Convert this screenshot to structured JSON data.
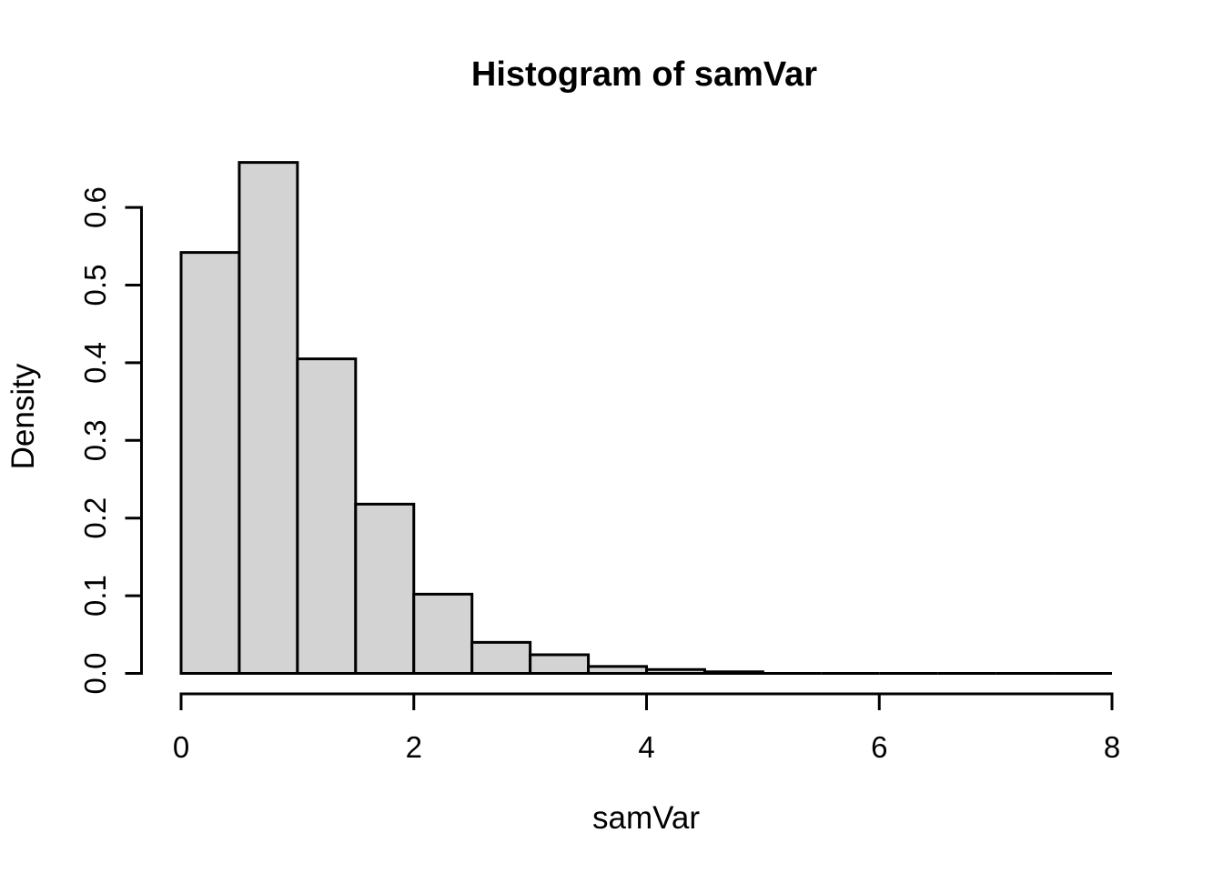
{
  "chart_data": {
    "type": "bar",
    "subtype": "histogram",
    "title": "Histogram of samVar",
    "xlabel": "samVar",
    "ylabel": "Density",
    "bin_width": 0.5,
    "bin_edges": [
      0,
      0.5,
      1,
      1.5,
      2,
      2.5,
      3,
      3.5,
      4,
      4.5,
      5,
      5.5,
      6,
      6.5,
      7,
      7.5,
      8
    ],
    "densities": [
      0.542,
      0.658,
      0.405,
      0.218,
      0.102,
      0.04,
      0.024,
      0.009,
      0.005,
      0.002,
      0,
      0,
      0,
      0,
      0,
      0
    ],
    "x_ticks": [
      "0",
      "2",
      "4",
      "6",
      "8"
    ],
    "y_ticks": [
      "0.0",
      "0.1",
      "0.2",
      "0.3",
      "0.4",
      "0.5",
      "0.6"
    ],
    "xlim": [
      0,
      8
    ],
    "ylim": [
      0,
      0.6
    ],
    "grid": false,
    "legend": "none",
    "colors": {
      "bar_fill": "#d3d3d3",
      "bar_stroke": "#000000",
      "axis": "#000000",
      "text": "#000000",
      "background": "#ffffff"
    }
  }
}
